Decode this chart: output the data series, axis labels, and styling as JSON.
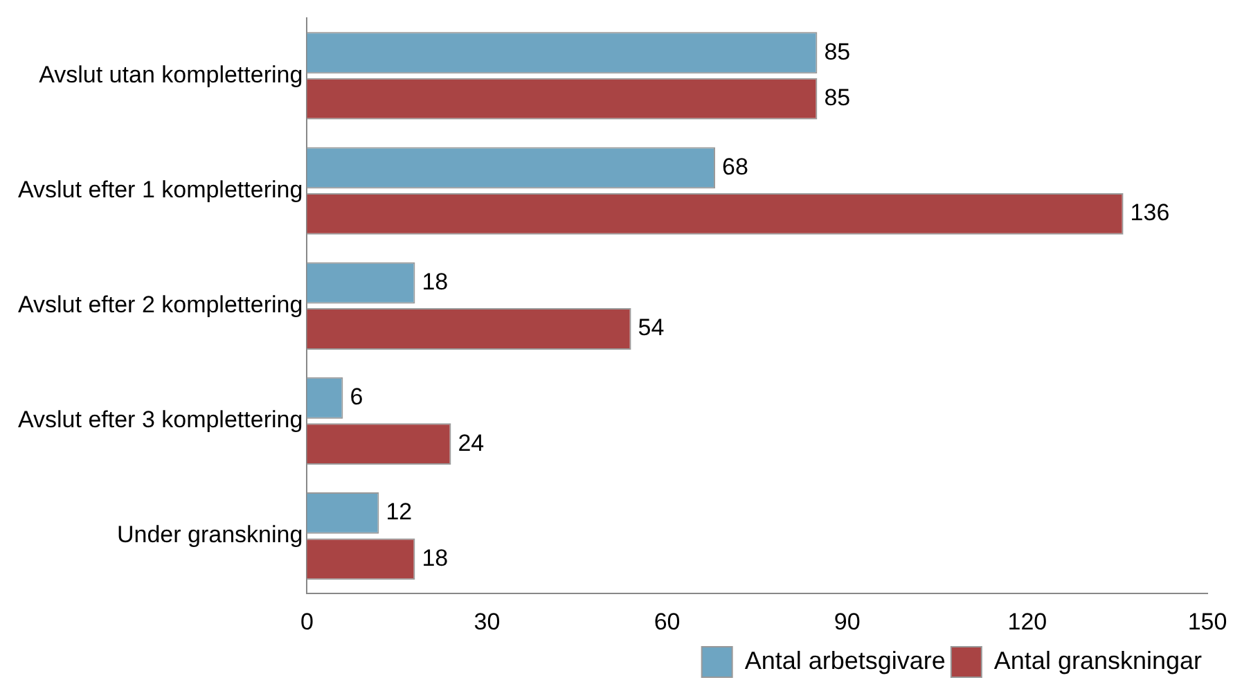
{
  "chart_data": {
    "type": "bar",
    "orientation": "horizontal",
    "categories": [
      "Avslut utan komplettering",
      "Avslut efter 1 komplettering",
      "Avslut efter 2 komplettering",
      "Avslut efter 3 komplettering",
      "Under granskning"
    ],
    "series": [
      {
        "name": "Antal arbetsgivare",
        "color": "#6ea5c2",
        "values": [
          85,
          68,
          18,
          6,
          12
        ]
      },
      {
        "name": "Antal granskningar",
        "color": "#a94444",
        "values": [
          85,
          136,
          54,
          24,
          18
        ]
      }
    ],
    "xlim": [
      0,
      150
    ],
    "xticks": [
      0,
      30,
      60,
      90,
      120,
      150
    ],
    "grid": false,
    "legend": "bottom",
    "data_labels": true
  }
}
